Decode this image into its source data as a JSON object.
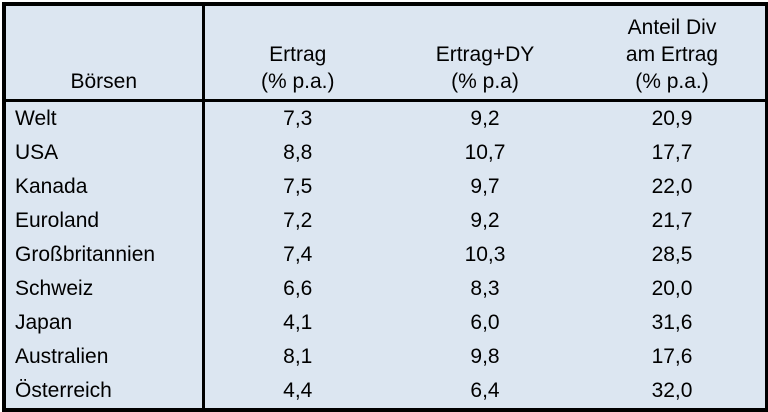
{
  "chart_data": {
    "type": "table",
    "title": "",
    "decimal_separator": ",",
    "columns": [
      "Börsen",
      "Ertrag\n(% p.a.)",
      "Ertrag+DY\n(% p.a)",
      "Anteil Div\nam Ertrag\n(% p.a.)"
    ],
    "rows": [
      [
        "Welt",
        "7,3",
        "9,2",
        "20,9"
      ],
      [
        "USA",
        "8,8",
        "10,7",
        "17,7"
      ],
      [
        "Kanada",
        "7,5",
        "9,7",
        "22,0"
      ],
      [
        "Euroland",
        "7,2",
        "9,2",
        "21,7"
      ],
      [
        "Großbritannien",
        "7,4",
        "10,3",
        "28,5"
      ],
      [
        "Schweiz",
        "6,6",
        "8,3",
        "20,0"
      ],
      [
        "Japan",
        "4,1",
        "6,0",
        "31,6"
      ],
      [
        "Australien",
        "8,1",
        "9,8",
        "17,6"
      ],
      [
        "Österreich",
        "4,4",
        "6,4",
        "32,0"
      ]
    ],
    "rows_numeric": [
      [
        "Welt",
        7.3,
        9.2,
        20.9
      ],
      [
        "USA",
        8.8,
        10.7,
        17.7
      ],
      [
        "Kanada",
        7.5,
        9.7,
        22.0
      ],
      [
        "Euroland",
        7.2,
        9.2,
        21.7
      ],
      [
        "Großbritannien",
        7.4,
        10.3,
        28.5
      ],
      [
        "Schweiz",
        6.6,
        8.3,
        20.0
      ],
      [
        "Japan",
        4.1,
        6.0,
        31.6
      ],
      [
        "Australien",
        8.1,
        9.8,
        17.6
      ],
      [
        "Österreich",
        4.4,
        6.4,
        32.0
      ]
    ],
    "layout": {
      "grid": "outer frame, vertical divider after first column, horizontal divider under header",
      "header_vertical_align": "bottom",
      "name_column_align": "left",
      "value_columns_align": "center"
    },
    "colors": {
      "cell_background": "#dce6f1",
      "border": "#000000",
      "text": "#000000"
    }
  }
}
